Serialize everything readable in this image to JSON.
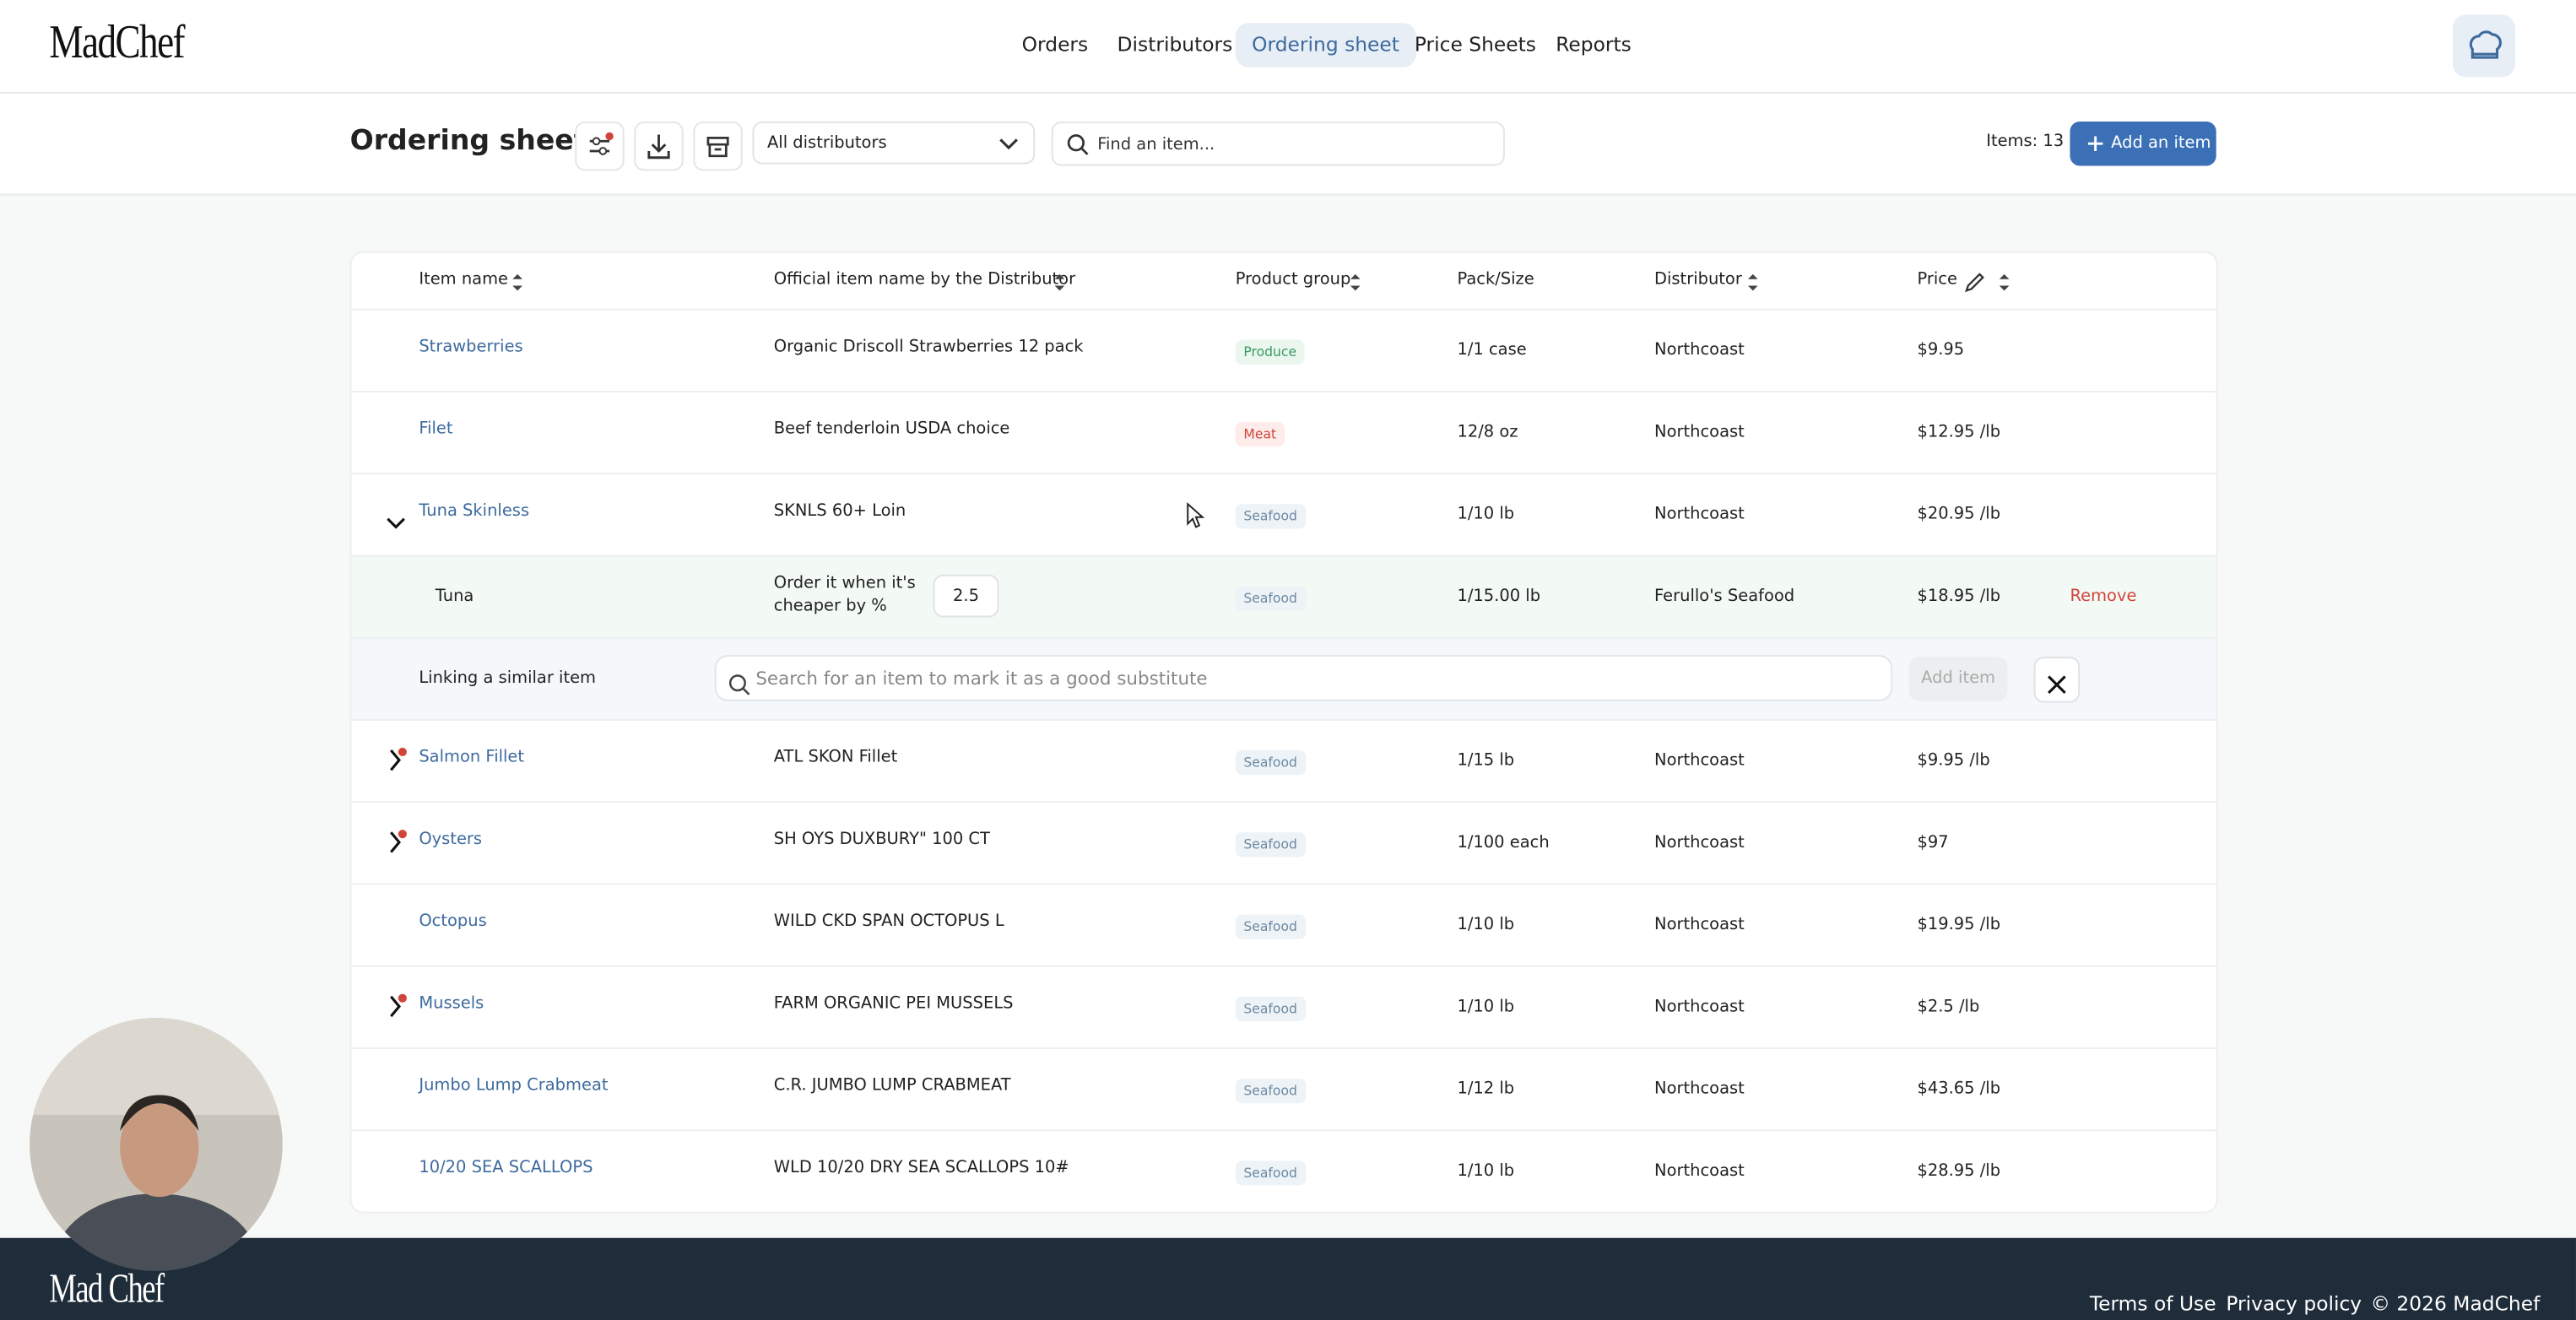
{
  "brand": "MadChef",
  "nav": [
    "Orders",
    "Distributors",
    "Ordering sheet",
    "Price Sheets",
    "Reports"
  ],
  "nav_active": 2,
  "toolbar": {
    "title": "Ordering sheet",
    "distributor_select": "All distributors",
    "search_placeholder": "Find an item...",
    "items_count": "Items: 13",
    "add_button": "Add an item"
  },
  "table": {
    "columns": [
      "Item name",
      "Official item name by the Distributor",
      "Product group",
      "Pack/Size",
      "Distributor",
      "Price"
    ],
    "rows": [
      {
        "name": "Strawberries",
        "official": "Organic Driscoll Strawberries 12 pack",
        "group": "Produce",
        "group_color": "#3a9a63",
        "group_bg": "#eaf6ee",
        "pack": "1/1 case",
        "distributor": "Northcoast",
        "price": "$9.95",
        "toggle": "none",
        "alert": false
      },
      {
        "name": "Filet",
        "official": "Beef tenderloin USDA choice",
        "group": "Meat",
        "group_color": "#d0453a",
        "group_bg": "#fdecea",
        "pack": "12/8 oz",
        "distributor": "Northcoast",
        "price": "$12.95 /lb",
        "toggle": "none",
        "alert": false
      },
      {
        "name": "Tuna Skinless",
        "official": "SKNLS 60+ Loin",
        "group": "Seafood",
        "group_color": "#6b8aa3",
        "group_bg": "#eef3f7",
        "pack": "1/10 lb",
        "distributor": "Northcoast",
        "price": "$20.95 /lb",
        "toggle": "open",
        "alert": false
      },
      {
        "name": "Salmon Fillet",
        "official": "ATL SKON Fillet",
        "group": "Seafood",
        "group_color": "#6b8aa3",
        "group_bg": "#eef3f7",
        "pack": "1/15 lb",
        "distributor": "Northcoast",
        "price": "$9.95 /lb",
        "toggle": "closed",
        "alert": true
      },
      {
        "name": "Oysters",
        "official": "SH OYS DUXBURY\" 100 CT",
        "group": "Seafood",
        "group_color": "#6b8aa3",
        "group_bg": "#eef3f7",
        "pack": "1/100 each",
        "distributor": "Northcoast",
        "price": "$97",
        "toggle": "closed",
        "alert": true
      },
      {
        "name": "Octopus",
        "official": "WILD CKD SPAN OCTOPUS L",
        "group": "Seafood",
        "group_color": "#6b8aa3",
        "group_bg": "#eef3f7",
        "pack": "1/10 lb",
        "distributor": "Northcoast",
        "price": "$19.95 /lb",
        "toggle": "none",
        "alert": false
      },
      {
        "name": "Mussels",
        "official": "FARM ORGANIC PEI MUSSELS",
        "group": "Seafood",
        "group_color": "#6b8aa3",
        "group_bg": "#eef3f7",
        "pack": "1/10 lb",
        "distributor": "Northcoast",
        "price": "$2.5 /lb",
        "toggle": "closed",
        "alert": true
      },
      {
        "name": "Jumbo Lump Crabmeat",
        "official": "C.R. JUMBO LUMP CRABMEAT",
        "group": "Seafood",
        "group_color": "#6b8aa3",
        "group_bg": "#eef3f7",
        "pack": "1/12 lb",
        "distributor": "Northcoast",
        "price": "$43.65 /lb",
        "toggle": "none",
        "alert": false
      },
      {
        "name": "10/20 SEA SCALLOPS",
        "official": "WLD 10/20 DRY SEA SCALLOPS 10#",
        "group": "Seafood",
        "group_color": "#6b8aa3",
        "group_bg": "#eef3f7",
        "pack": "1/10 lb",
        "distributor": "Northcoast",
        "price": "$28.95 /lb",
        "toggle": "none",
        "alert": false
      }
    ],
    "substitute": {
      "after_row": 2,
      "name": "Tuna",
      "rule": "Order it when it's cheaper by %",
      "threshold": "2.5",
      "group": "Seafood",
      "group_color": "#6b8aa3",
      "group_bg": "#eef3f7",
      "pack": "1/15.00 lb",
      "distributor": "Ferullo's Seafood",
      "price": "$18.95 /lb",
      "action": "Remove"
    },
    "link_row": {
      "label": "Linking a similar item",
      "placeholder": "Search for an item to mark it as a good substitute",
      "button": "Add item"
    }
  },
  "footer": {
    "brand": "Mad Chef",
    "links": [
      "Terms of Use",
      "Privacy policy",
      "© 2026 MadChef"
    ]
  }
}
